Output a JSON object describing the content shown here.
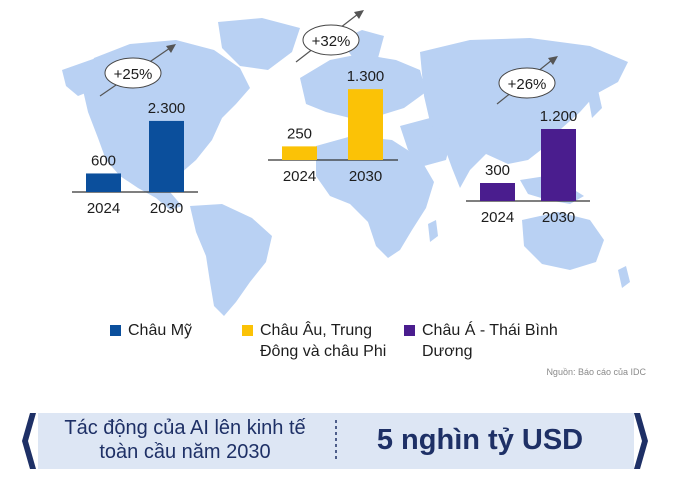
{
  "chart_data": [
    {
      "type": "bar",
      "region": "Châu Mỹ",
      "categories": [
        "2024",
        "2030"
      ],
      "values": [
        600,
        2300
      ],
      "value_labels": [
        "600",
        "2.300"
      ],
      "growth": "+25%",
      "color": "#0b4f9c"
    },
    {
      "type": "bar",
      "region": "Châu Âu, Trung Đông và châu Phi",
      "categories": [
        "2024",
        "2030"
      ],
      "values": [
        250,
        1300
      ],
      "value_labels": [
        "250",
        "1.300"
      ],
      "growth": "+32%",
      "color": "#fbc206"
    },
    {
      "type": "bar",
      "region": "Châu Á - Thái Bình Dương",
      "categories": [
        "2024",
        "2030"
      ],
      "values": [
        300,
        1200
      ],
      "value_labels": [
        "300",
        "1.200"
      ],
      "growth": "+26%",
      "color": "#4a1d8e"
    }
  ],
  "legend": [
    {
      "line1": "Châu Mỹ",
      "line2": "",
      "color": "#0b4f9c"
    },
    {
      "line1": "Châu Âu, Trung",
      "line2": "Đông và châu Phi",
      "color": "#fbc206"
    },
    {
      "line1": "Châu Á - Thái Bình",
      "line2": "Dương",
      "color": "#4a1d8e"
    }
  ],
  "source": "Nguồn: Báo cáo của IDC",
  "banner": {
    "line1": "Tác động của AI lên kinh tế",
    "line2": "toàn cầu năm 2030",
    "value": "5 nghìn tỷ USD"
  },
  "colors": {
    "map": "#b9d1f3",
    "banner_fill": "#dde6f4",
    "banner_border": "#1e3066"
  }
}
